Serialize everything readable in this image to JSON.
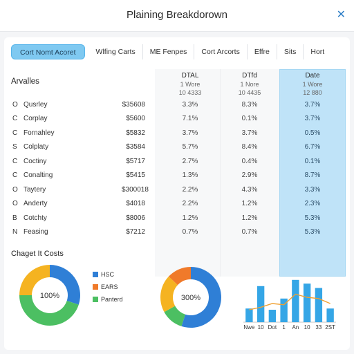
{
  "header": {
    "title": "Plaining Breakdorown",
    "close_icon": "close-icon"
  },
  "tabs": [
    {
      "label": "Cort Nomt Acoret",
      "active": true
    },
    {
      "label": "Wlfing Carts",
      "active": false
    },
    {
      "label": "ME Fenpes",
      "active": false
    },
    {
      "label": "Cort Arcorts",
      "active": false
    },
    {
      "label": "Effre",
      "active": false
    },
    {
      "label": "Sits",
      "active": false
    },
    {
      "label": "Hort",
      "active": false
    }
  ],
  "table": {
    "title": "Arvalles",
    "columns": [
      {
        "name": "DTAL",
        "sub1": "1 Wore",
        "sub2": "10 4333"
      },
      {
        "name": "DTfd",
        "sub1": "1 Nore",
        "sub2": "10 4435"
      },
      {
        "name": "Date",
        "sub1": "1 Wore",
        "sub2": "12 880"
      }
    ],
    "rows": [
      {
        "letter": "O",
        "name": "Qusrley",
        "amount": "$35608",
        "v1": "3.3%",
        "v2": "8.3%",
        "v3": "3.7%"
      },
      {
        "letter": "C",
        "name": "Corplay",
        "amount": "$5600",
        "v1": "7.1%",
        "v2": "0.1%",
        "v3": "3.7%"
      },
      {
        "letter": "C",
        "name": "Fornahley",
        "amount": "$5832",
        "v1": "3.7%",
        "v2": "3.7%",
        "v3": "0.5%"
      },
      {
        "letter": "S",
        "name": "Colplaty",
        "amount": "$3584",
        "v1": "5.7%",
        "v2": "8.4%",
        "v3": "6.7%"
      },
      {
        "letter": "C",
        "name": "Coctiny",
        "amount": "$5717",
        "v1": "2.7%",
        "v2": "0.4%",
        "v3": "0.1%"
      },
      {
        "letter": "C",
        "name": "Conalting",
        "amount": "$5415",
        "v1": "1.3%",
        "v2": "2.9%",
        "v3": "8.7%"
      },
      {
        "letter": "O",
        "name": "Taytery",
        "amount": "$300018",
        "v1": "2.2%",
        "v2": "4.3%",
        "v3": "3.3%"
      },
      {
        "letter": "O",
        "name": "Anderty",
        "amount": "$4018",
        "v1": "2.2%",
        "v2": "1.2%",
        "v3": "2.3%"
      },
      {
        "letter": "B",
        "name": "Cotchty",
        "amount": "$8006",
        "v1": "1.2%",
        "v2": "1.2%",
        "v3": "5.3%"
      },
      {
        "letter": "N",
        "name": "Feasing",
        "amount": "$7212",
        "v1": "0.7%",
        "v2": "0.7%",
        "v3": "5.3%"
      }
    ]
  },
  "section_label": "Chaget It Costs",
  "legend": [
    {
      "label": "HSC",
      "color": "#2f7fd6"
    },
    {
      "label": "EARS",
      "color": "#f07a2a"
    },
    {
      "label": "Panterd",
      "color": "#4cbf62"
    }
  ],
  "donut1": {
    "center_label": "100%",
    "slices": [
      {
        "value": 30,
        "color": "#2f7fd6"
      },
      {
        "value": 45,
        "color": "#4cbf62"
      },
      {
        "value": 25,
        "color": "#f5b321"
      }
    ]
  },
  "donut2": {
    "center_label": "300%",
    "slices": [
      {
        "value": 55,
        "color": "#2f7fd6"
      },
      {
        "value": 12,
        "color": "#4cbf62"
      },
      {
        "value": 20,
        "color": "#f5b321"
      },
      {
        "value": 13,
        "color": "#f07a2a"
      }
    ]
  },
  "chart_data": {
    "type": "bar",
    "categories": [
      "Nwe",
      "10",
      "Dot",
      "1",
      "An",
      "10",
      "33",
      "2ST"
    ],
    "values": [
      22,
      58,
      20,
      38,
      68,
      62,
      55,
      22
    ],
    "line_values": [
      20,
      24,
      30,
      28,
      45,
      40,
      38,
      30
    ],
    "colors": {
      "bar": "#35a6e6",
      "line": "#f0a030"
    }
  }
}
